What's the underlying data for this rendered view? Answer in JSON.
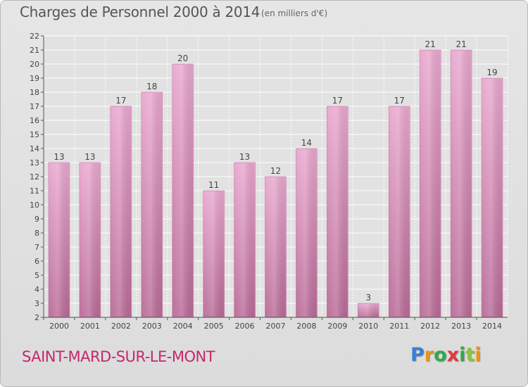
{
  "header": {
    "title": "Charges de Personnel 2000 à 2014",
    "subtitle": "(en milliers d'€)"
  },
  "footer": {
    "commune": "SAINT-MARD-SUR-LE-MONT",
    "logo_text": "Proxiti",
    "logo_colors": [
      "#3a7fd5",
      "#e8941a",
      "#2fa84f",
      "#e23a3a",
      "#2fa84f",
      "#8bc53f",
      "#e8941a"
    ]
  },
  "chart_data": {
    "type": "bar",
    "categories": [
      "2000",
      "2001",
      "2002",
      "2003",
      "2004",
      "2005",
      "2006",
      "2007",
      "2008",
      "2009",
      "2010",
      "2011",
      "2012",
      "2013",
      "2014"
    ],
    "values": [
      13,
      13,
      17,
      18,
      20,
      11,
      13,
      12,
      14,
      17,
      3,
      17,
      21,
      21,
      19
    ],
    "value_labels": [
      "13",
      "13",
      "17",
      "18",
      "20",
      "11",
      "13",
      "12",
      "14",
      "17",
      "3",
      "17",
      "21",
      "21",
      "19"
    ],
    "ylim": [
      2,
      22
    ],
    "yticks": [
      "2",
      "3",
      "4",
      "5",
      "6",
      "7",
      "8",
      "9",
      "10",
      "11",
      "12",
      "13",
      "14",
      "15",
      "16",
      "17",
      "18",
      "19",
      "20",
      "21",
      "22"
    ],
    "bar_color": "#d98ab8",
    "grid": true
  }
}
